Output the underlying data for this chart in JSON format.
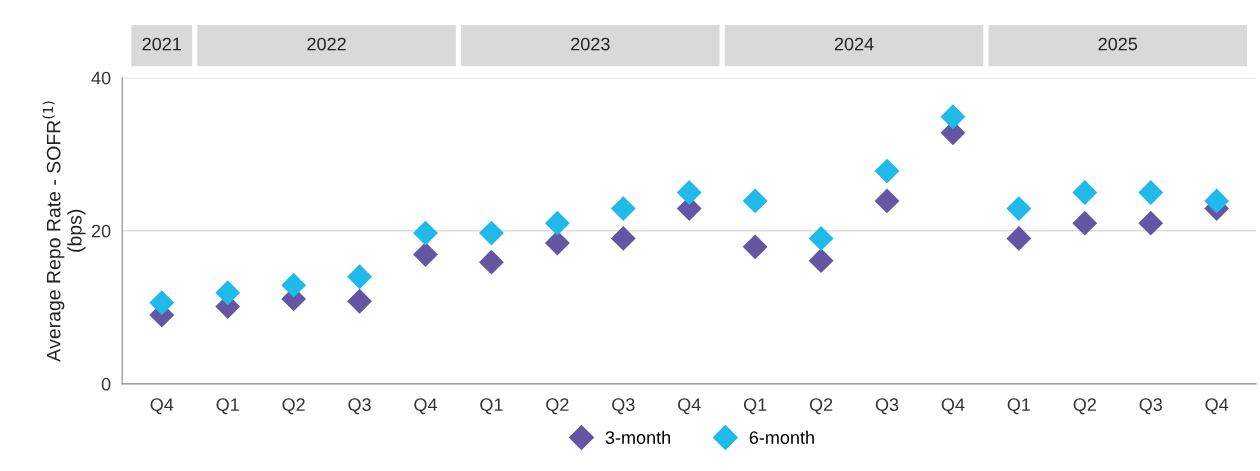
{
  "chart_data": {
    "type": "scatter",
    "ylabel": "Average Repo Rate - SOFR$^{(1)}$\n(bps)",
    "categories": [
      "Q4",
      "Q1",
      "Q2",
      "Q3",
      "Q4",
      "Q1",
      "Q2",
      "Q3",
      "Q4",
      "Q1",
      "Q2",
      "Q3",
      "Q4",
      "Q1",
      "Q2",
      "Q3",
      "Q4"
    ],
    "annotations": [
      "2021",
      "2022",
      "2023",
      "2024",
      "2025"
    ],
    "series": [
      {
        "name": "3-month",
        "color": "#6456a3",
        "values": [
          9.0,
          10.1,
          11.1,
          10.8,
          16.9,
          15.9,
          18.4,
          19.0,
          22.9,
          17.9,
          16.1,
          23.9,
          32.8,
          19.0,
          21.0,
          21.0,
          22.9
        ]
      },
      {
        "name": "6-month",
        "color": "#1fb9ea",
        "values": [
          10.6,
          11.9,
          12.9,
          14.0,
          19.7,
          19.7,
          21.0,
          22.9,
          25.0,
          23.9,
          19.0,
          27.8,
          34.9,
          22.9,
          25.0,
          25.0,
          23.9
        ]
      }
    ],
    "ylim": [
      0,
      40
    ],
    "yticks": [
      0,
      20,
      40
    ],
    "grid": "y",
    "legend": "bottom",
    "marker": "diamond"
  }
}
